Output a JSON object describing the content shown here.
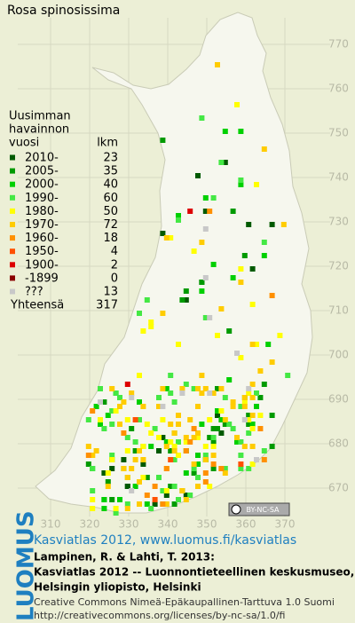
{
  "title": "Rosa spinosissima",
  "legend": {
    "header": [
      "Uusimman",
      "havainnon",
      "vuosi"
    ],
    "count_header": "lkm",
    "entries": [
      {
        "label": "2010-",
        "count": 23,
        "color": "#005a00"
      },
      {
        "label": "2005-",
        "count": 35,
        "color": "#009a00"
      },
      {
        "label": "2000-",
        "count": 40,
        "color": "#00d000"
      },
      {
        "label": "1990-",
        "count": 60,
        "color": "#44e844"
      },
      {
        "label": "1980-",
        "count": 50,
        "color": "#ffff00"
      },
      {
        "label": "1970-",
        "count": 72,
        "color": "#ffcc00"
      },
      {
        "label": "1960-",
        "count": 18,
        "color": "#ff9000"
      },
      {
        "label": "1950-",
        "count": 4,
        "color": "#ff5000"
      },
      {
        "label": "1900-",
        "count": 2,
        "color": "#dd0000"
      },
      {
        "label": "-1899",
        "count": 0,
        "color": "#8a0000"
      },
      {
        "label": "???",
        "count": 13,
        "color": "#c8c8c8"
      }
    ],
    "total_label": "Yhteensä",
    "total": 317
  },
  "xticks": [
    310,
    320,
    330,
    340,
    350,
    360,
    370
  ],
  "yticks": [
    670,
    680,
    690,
    700,
    710,
    720,
    730,
    740,
    750,
    760,
    770
  ],
  "license_badge": "BY-NC-SA",
  "footer": {
    "logo": "LUOMUS",
    "link": "Kasviatlas 2012, www.luomus.fi/kasviatlas",
    "lines": [
      "Lampinen, R. & Lahti, T. 2013:",
      "Kasviatlas 2012 -- Luonnontieteellinen keskusmuseo,",
      "Helsingin yliopisto, Helsinki"
    ],
    "license": [
      "Creative Commons Nimeä-Epäkaupallinen-Tarttuva 1.0 Suomi",
      "http://creativecommons.org/licenses/by-nc-sa/1.0/fi"
    ]
  }
}
